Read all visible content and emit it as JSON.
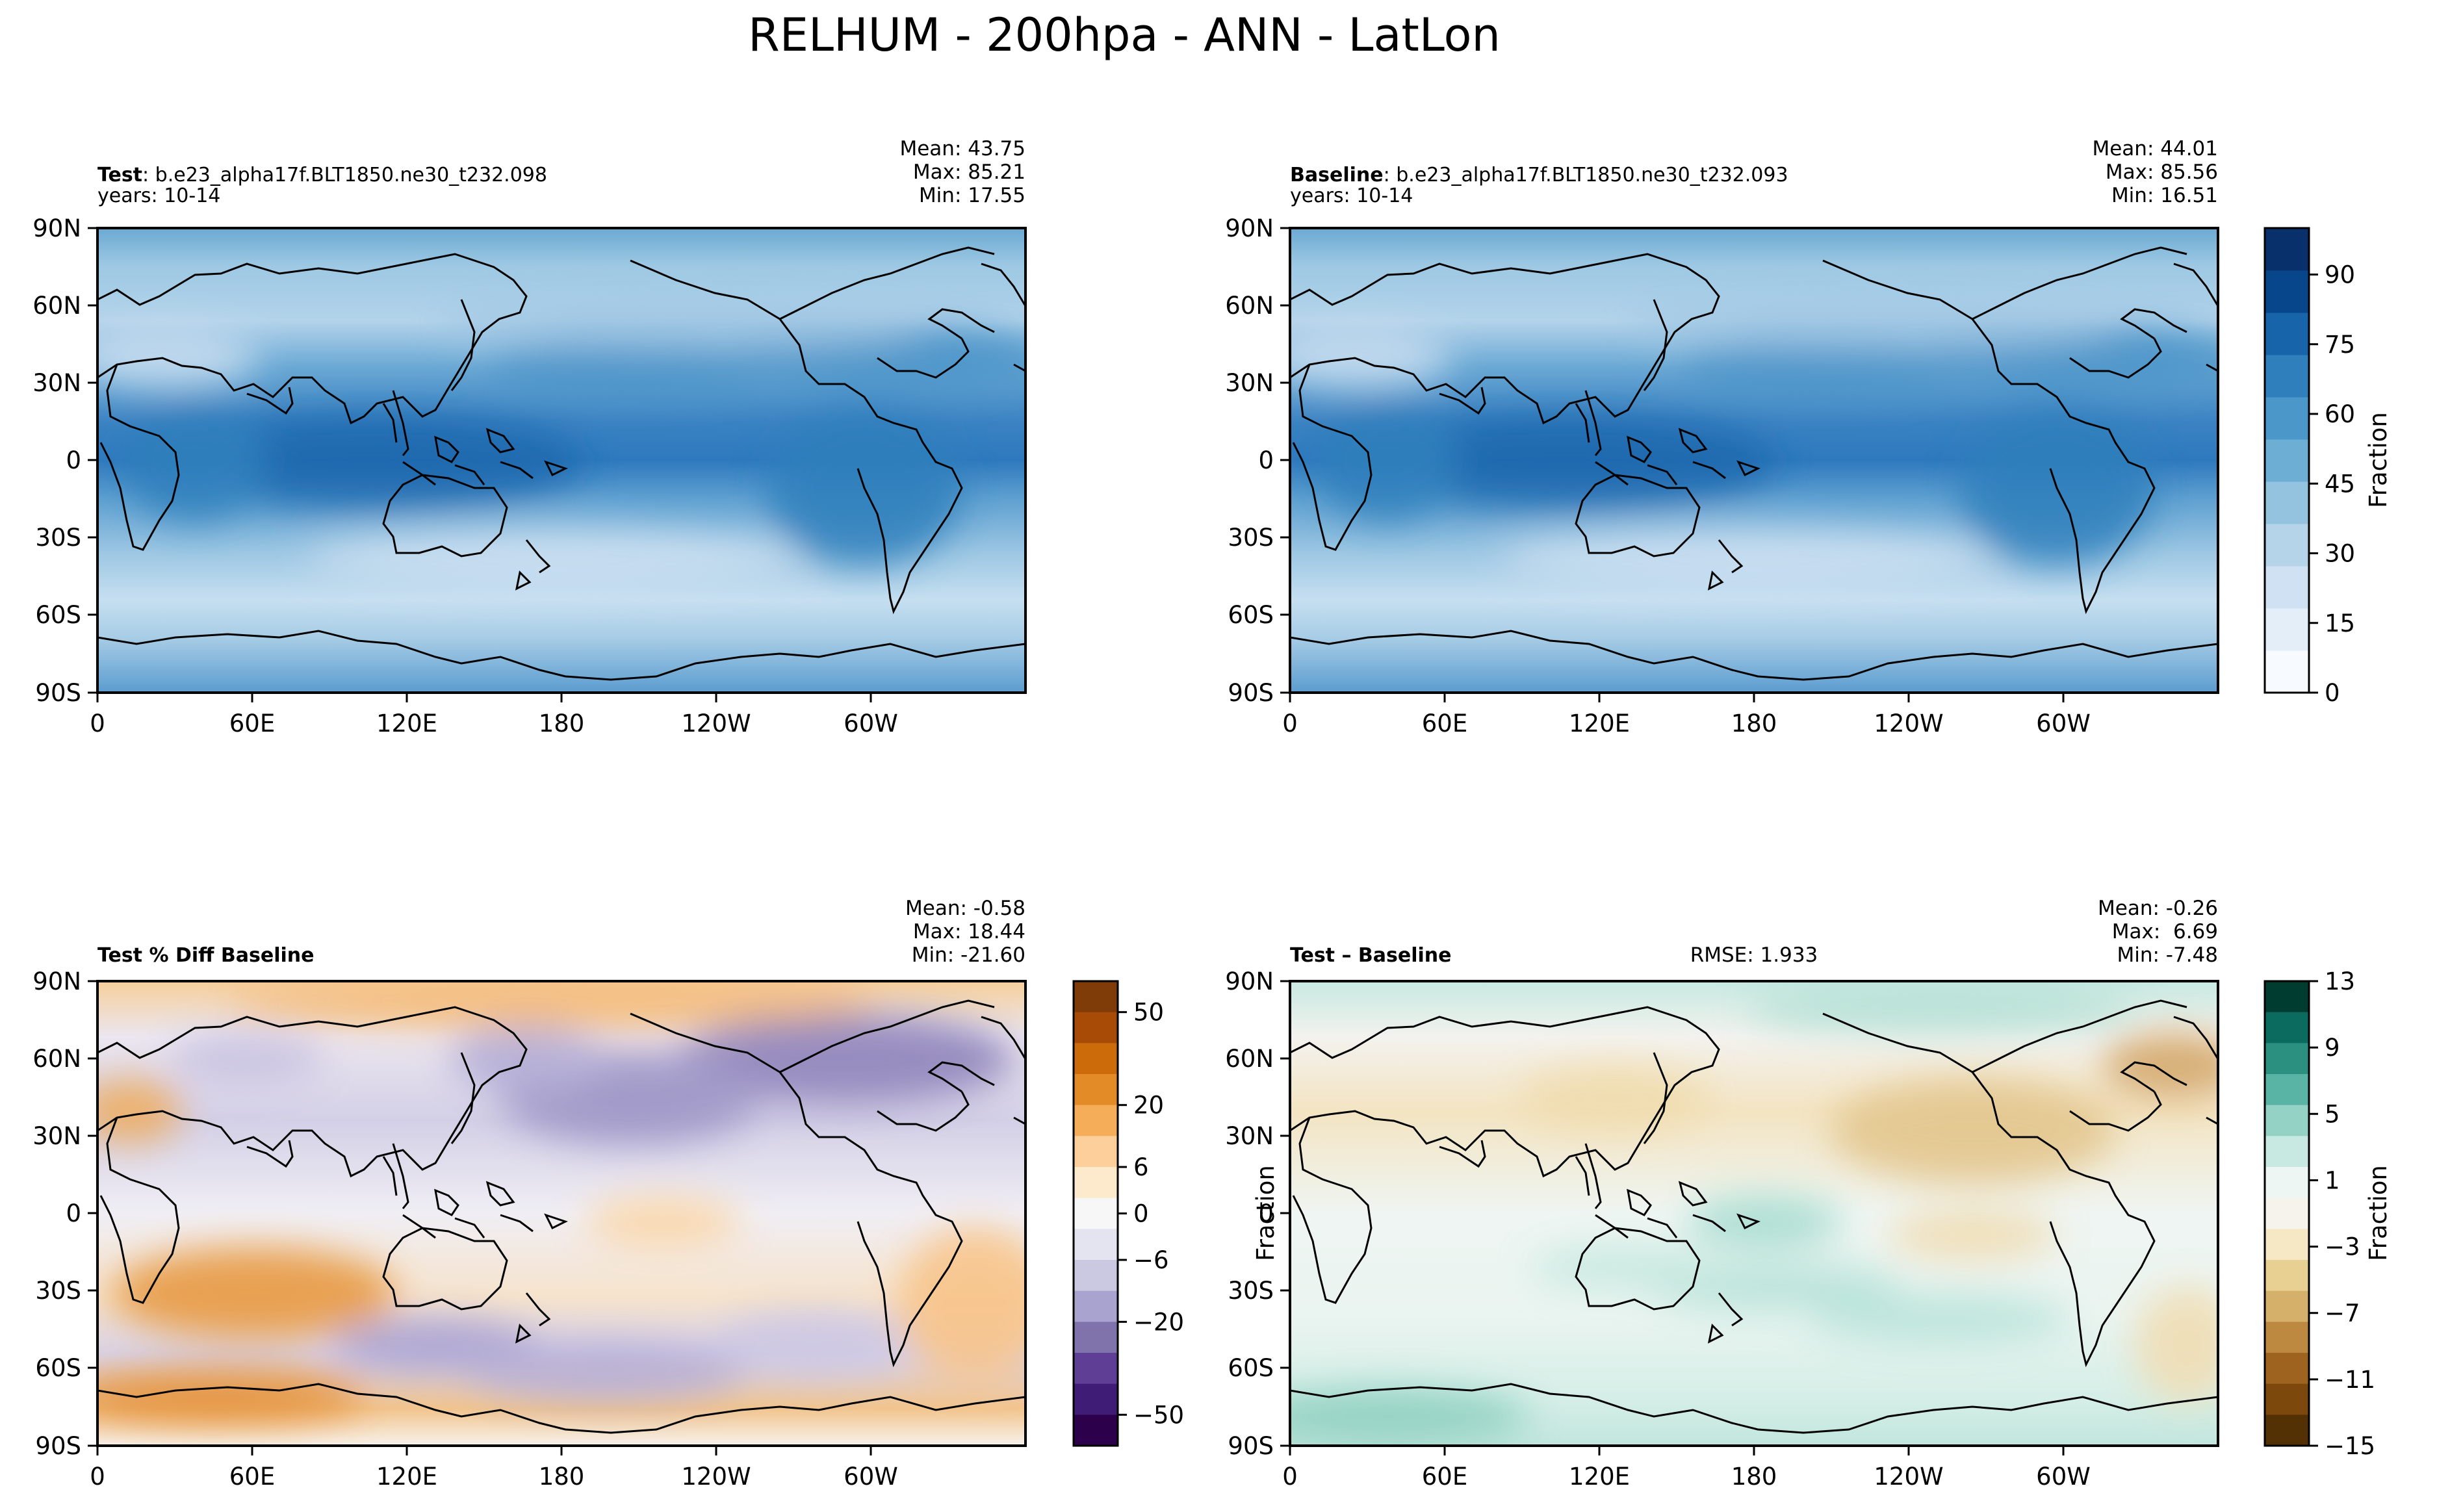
{
  "figure": {
    "title": "RELHUM - 200hpa - ANN - LatLon"
  },
  "chart_data": [
    {
      "type": "heatmap",
      "panel": "test",
      "title_bold": "Test",
      "title_rest": ": b.e23_alpha17f.BLT1850.ne30_t232.098",
      "years": "years: 10-14",
      "stats": [
        "Mean: 43.75",
        "Max: 85.21",
        "Min: 17.55"
      ],
      "x_ticks": [
        "0",
        "60E",
        "120E",
        "180",
        "120W",
        "60W"
      ],
      "y_ticks": [
        "90N",
        "60N",
        "30N",
        "0",
        "30S",
        "60S",
        "90S"
      ],
      "field": "relative humidity",
      "mean": 43.75,
      "max": 85.21,
      "min": 17.55
    },
    {
      "type": "heatmap",
      "panel": "baseline",
      "title_bold": "Baseline",
      "title_rest": ": b.e23_alpha17f.BLT1850.ne30_t232.093",
      "years": "years: 10-14",
      "stats": [
        "Mean: 44.01",
        "Max: 85.56",
        "Min: 16.51"
      ],
      "x_ticks": [
        "0",
        "60E",
        "120E",
        "180",
        "120W",
        "60W"
      ],
      "y_ticks": [
        "90N",
        "60N",
        "30N",
        "0",
        "30S",
        "60S",
        "90S"
      ],
      "field": "relative humidity",
      "mean": 44.01,
      "max": 85.56,
      "min": 16.51,
      "colorbar": {
        "label": "Fraction",
        "ticks": [
          "0",
          "15",
          "30",
          "45",
          "60",
          "75",
          "90"
        ],
        "range": [
          0,
          100
        ],
        "colors": [
          "#f7fbff",
          "#e3eef8",
          "#cfe1f2",
          "#b5d4e9",
          "#93c3df",
          "#6daed5",
          "#4b97c9",
          "#2f7fbc",
          "#1764ab",
          "#08468b",
          "#08306b"
        ]
      }
    },
    {
      "type": "heatmap",
      "panel": "percent-diff",
      "title_bold": "Test % Diff Baseline",
      "stats": [
        "Mean: -0.58",
        "Max: 18.44",
        "Min: -21.60"
      ],
      "x_ticks": [
        "0",
        "60E",
        "120E",
        "180",
        "120W",
        "60W"
      ],
      "y_ticks": [
        "90N",
        "60N",
        "30N",
        "0",
        "30S",
        "60S",
        "90S"
      ],
      "mean": -0.58,
      "max": 18.44,
      "min": -21.6,
      "colorbar": {
        "label": "",
        "ticks": [
          "50",
          "20",
          "6",
          "0",
          "−6",
          "−20",
          "−50"
        ],
        "colors": [
          "#7f3b08",
          "#a74b07",
          "#cc6b0a",
          "#e28b27",
          "#f5ad5a",
          "#fdd09b",
          "#fde9cc",
          "#f7f7f7",
          "#e4e3f0",
          "#cbc8e2",
          "#a9a3cf",
          "#8073ac",
          "#5f3f96",
          "#3f1c76",
          "#2d004b"
        ]
      }
    },
    {
      "type": "heatmap",
      "panel": "difference",
      "title_bold": "Test",
      "title_rest": " – Baseline",
      "rmse": "RMSE: 1.933",
      "stats": [
        "Mean: -0.26",
        "Max:  6.69",
        "Min: -7.48"
      ],
      "x_ticks": [
        "0",
        "60E",
        "120E",
        "180",
        "120W",
        "60W"
      ],
      "y_ticks": [
        "90N",
        "60N",
        "30N",
        "0",
        "30S",
        "60S",
        "90S"
      ],
      "y_label": "Fraction",
      "mean": -0.26,
      "max": 6.69,
      "min": -7.48,
      "colorbar": {
        "label": "Fraction",
        "ticks": [
          "13",
          "9",
          "5",
          "1",
          "−3",
          "−7",
          "−11",
          "−15"
        ],
        "colors": [
          "#003c30",
          "#0b6b5f",
          "#2b9080",
          "#5ab4a5",
          "#93d2c5",
          "#c7e9e1",
          "#eef6f3",
          "#f5f3ec",
          "#f6e7c5",
          "#e8cf92",
          "#d4b06a",
          "#bd8940",
          "#9f6320",
          "#7d480c",
          "#543005"
        ]
      }
    }
  ]
}
